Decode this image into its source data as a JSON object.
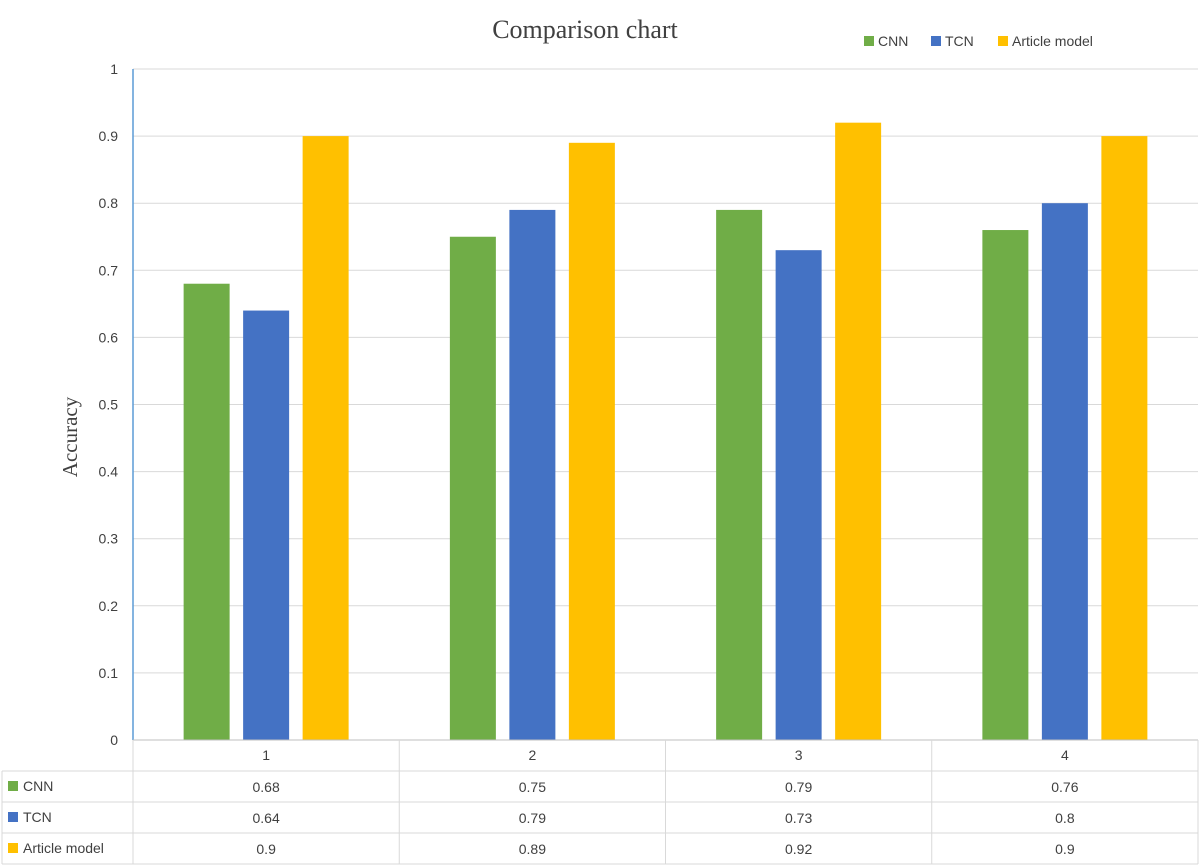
{
  "chart_data": {
    "type": "bar",
    "title": "Comparison chart",
    "xlabel": "",
    "ylabel": "Accuracy",
    "ylim": [
      0,
      1
    ],
    "yticks": [
      "0",
      "0.1",
      "0.2",
      "0.3",
      "0.4",
      "0.5",
      "0.6",
      "0.7",
      "0.8",
      "0.9",
      "1"
    ],
    "grid": true,
    "legend_position": "top-right",
    "categories": [
      "1",
      "2",
      "3",
      "4"
    ],
    "series": [
      {
        "name": "CNN",
        "color": "#70ad47",
        "values": [
          0.68,
          0.75,
          0.79,
          0.76
        ],
        "labels": [
          "0.68",
          "0.75",
          "0.79",
          "0.76"
        ]
      },
      {
        "name": "TCN",
        "color": "#4472c4",
        "values": [
          0.64,
          0.79,
          0.73,
          0.8
        ],
        "labels": [
          "0.64",
          "0.79",
          "0.73",
          "0.8"
        ]
      },
      {
        "name": "Article model",
        "color": "#ffc000",
        "values": [
          0.9,
          0.89,
          0.92,
          0.9
        ],
        "labels": [
          "0.9",
          "0.89",
          "0.92",
          "0.9"
        ]
      }
    ],
    "data_table": true
  }
}
